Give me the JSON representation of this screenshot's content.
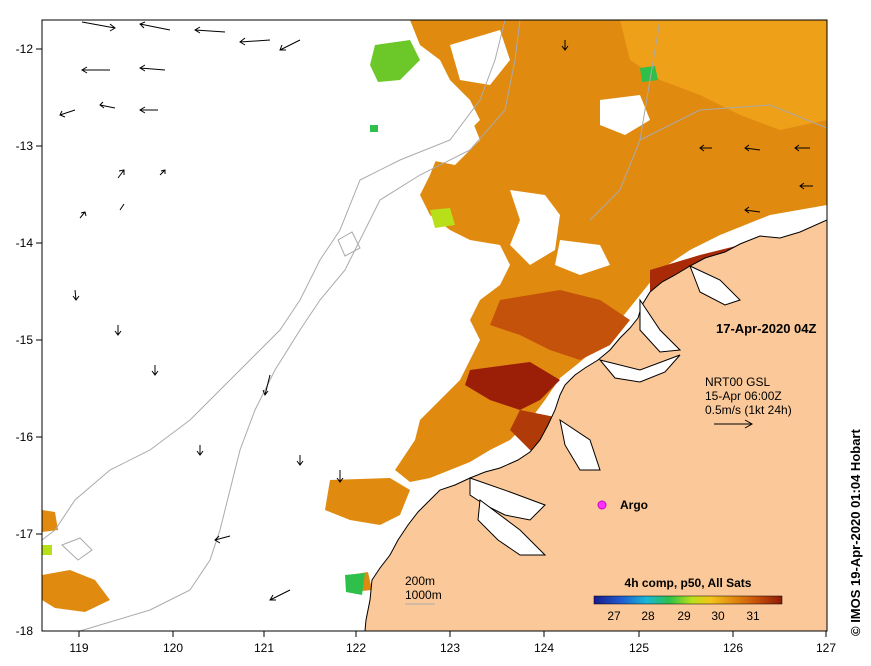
{
  "map": {
    "x_ticks": [
      "119",
      "120",
      "121",
      "122",
      "123",
      "124",
      "125",
      "126",
      "127"
    ],
    "y_ticks": [
      "-12",
      "-13",
      "-14",
      "-15",
      "-16",
      "-17",
      "-18"
    ],
    "date_label": "17-Apr-2020 04Z",
    "current_info": {
      "line1": "NRT00 GSL",
      "line2": "15-Apr 06:00Z",
      "line3": "0.5m/s (1kt 24h)"
    },
    "argo_label": "Argo",
    "isobaths": [
      "200m",
      "1000m"
    ],
    "colorbar": {
      "title": "4h comp, p50, All Sats",
      "ticks": [
        "27",
        "28",
        "29",
        "30",
        "31"
      ]
    },
    "credit": "© IMOS 19-Apr-2020 01:04 Hobart",
    "colors": {
      "land": "#fbc999",
      "sst_main": "#e08a10",
      "sst_warm": "#c4520a",
      "sst_hot": "#9a1f06",
      "isobath": "#aaaaaa"
    }
  }
}
